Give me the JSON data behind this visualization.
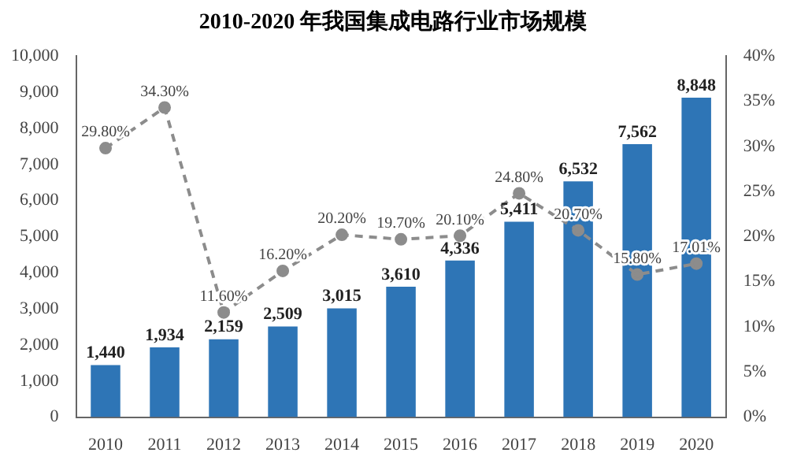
{
  "chart_data": {
    "type": "bar",
    "title": "2010-2020 年我国集成电路行业市场规模",
    "categories": [
      "2010",
      "2011",
      "2012",
      "2013",
      "2014",
      "2015",
      "2016",
      "2017",
      "2018",
      "2019",
      "2020"
    ],
    "series": [
      {
        "color": "#2e75b6",
        "values": [
          1440,
          1934,
          2159,
          2509,
          3015,
          3610,
          4336,
          5411,
          6532,
          7562,
          8848
        ],
        "value_labels": [
          "1,440",
          "1,934",
          "2,159",
          "2,509",
          "3,015",
          "3,610",
          "4,336",
          "5,411",
          "6,532",
          "7,562",
          "8,848"
        ]
      },
      {
        "type": "line",
        "axis": "y2",
        "color": "#8c8c8c",
        "line_style": "dashed",
        "marker": "circle",
        "values": [
          29.8,
          34.3,
          11.6,
          16.2,
          20.2,
          19.7,
          20.1,
          24.8,
          20.7,
          15.8,
          17.01
        ],
        "value_labels": [
          "29.80%",
          "34.30%",
          "11.60%",
          "16.20%",
          "20.20%",
          "19.70%",
          "20.10%",
          "24.80%",
          "20.70%",
          "15.80%",
          "17.01%"
        ]
      }
    ],
    "ylim": [
      0,
      10000
    ],
    "yticks": [
      0,
      {
        "value": 1000,
        "label": "1,000"
      },
      {
        "value": 2000,
        "label": "2,000"
      },
      {
        "value": 3000,
        "label": "3,000"
      },
      {
        "value": 4000,
        "label": "4,000"
      },
      {
        "value": 5000,
        "label": "5,000"
      },
      {
        "value": 6000,
        "label": "6,000"
      },
      {
        "value": 7000,
        "label": "7,000"
      },
      {
        "value": 8000,
        "label": "8,000"
      },
      {
        "value": 9000,
        "label": "9,000"
      },
      {
        "value": 10000,
        "label": "10,000"
      }
    ],
    "y2lim": [
      0,
      40
    ],
    "y2ticks": [
      {
        "value": 0,
        "label": "0%"
      },
      {
        "value": 5,
        "label": "5%"
      },
      {
        "value": 10,
        "label": "10%"
      },
      {
        "value": 15,
        "label": "15%"
      },
      {
        "value": 20,
        "label": "20%"
      },
      {
        "value": 25,
        "label": "25%"
      },
      {
        "value": 30,
        "label": "30%"
      },
      {
        "value": 35,
        "label": "35%"
      },
      {
        "value": 40,
        "label": "40%"
      }
    ],
    "grid": false,
    "legend": false
  }
}
